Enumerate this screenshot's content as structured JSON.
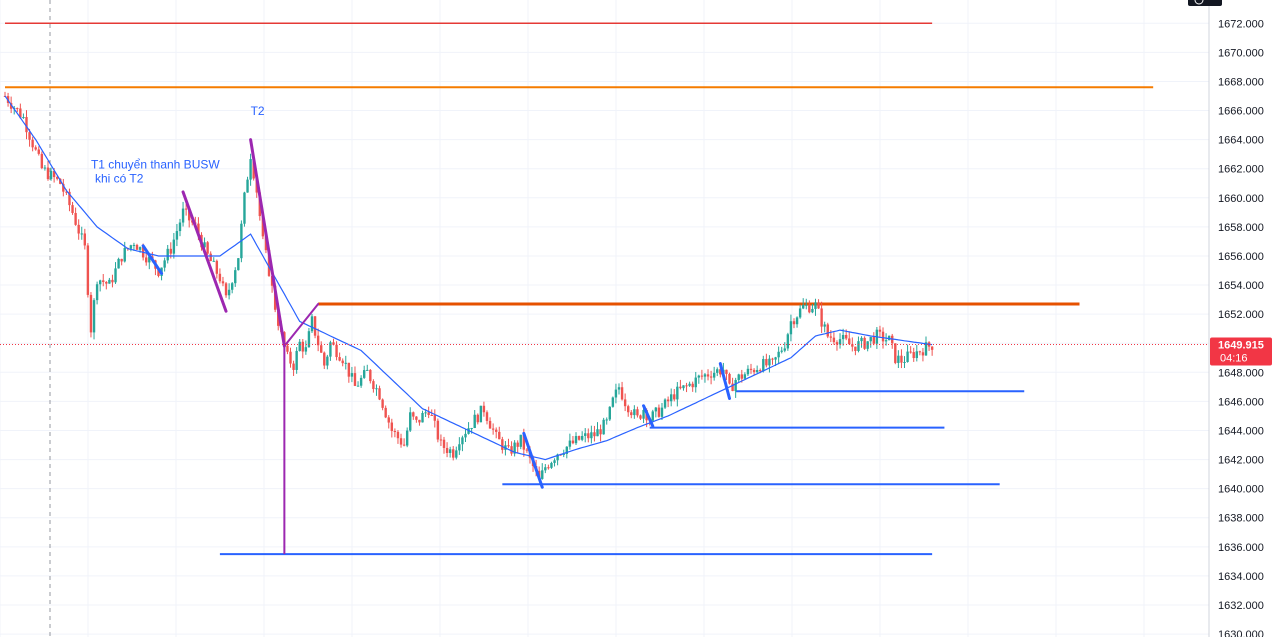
{
  "chart_data": {
    "type": "candlestick",
    "y_axis": {
      "ticks": [
        "1672.000",
        "1670.000",
        "1668.000",
        "1666.000",
        "1664.000",
        "1662.000",
        "1660.000",
        "1658.000",
        "1656.000",
        "1654.000",
        "1652.000",
        "1650.000",
        "1648.000",
        "1646.000",
        "1644.000",
        "1642.000",
        "1640.000",
        "1638.000",
        "1636.000",
        "1634.000",
        "1632.000",
        "1630.000"
      ],
      "tick_values": [
        1672,
        1670,
        1668,
        1666,
        1664,
        1662,
        1660,
        1658,
        1656,
        1654,
        1652,
        1650,
        1648,
        1646,
        1644,
        1642,
        1640,
        1638,
        1636,
        1634,
        1632,
        1630
      ],
      "ylim": [
        1629.8,
        1673.6
      ]
    },
    "current_price": {
      "label": "1649.915",
      "value": 1649.915,
      "countdown": "04:16",
      "color": "#f23645"
    },
    "colors": {
      "up": "#26a69a",
      "down": "#ef5350",
      "ma": "#2962ff",
      "grid": "#f0f3fa"
    },
    "annotations": [
      {
        "id": "t1",
        "lines": [
          "T1 chuyển thanh BUSW",
          "khi có T2"
        ],
        "x": 14,
        "y": 1662.0,
        "color": "#2962ff"
      },
      {
        "id": "t2",
        "lines": [
          "T2"
        ],
        "x": 40,
        "y": 1665.7,
        "color": "#2962ff"
      }
    ],
    "horizontal_levels": [
      {
        "y": 1672.0,
        "x_start": 0,
        "x_end": 151,
        "color": "#e53935",
        "width": 1.5
      },
      {
        "y": 1667.6,
        "x_start": 0,
        "x_end": 187,
        "color": "#f57c00",
        "width": 2
      },
      {
        "y": 1652.7,
        "x_start": 51,
        "x_end": 175,
        "color": "#e65100",
        "width": 3
      },
      {
        "y": 1646.7,
        "x_start": 119,
        "x_end": 166,
        "color": "#2962ff",
        "width": 2
      },
      {
        "y": 1644.2,
        "x_start": 105,
        "x_end": 153,
        "color": "#2962ff",
        "width": 2
      },
      {
        "y": 1640.3,
        "x_start": 81,
        "x_end": 162,
        "color": "#2962ff",
        "width": 2
      },
      {
        "y": 1635.5,
        "x_start": 35,
        "x_end": 151,
        "color": "#2962ff",
        "width": 2
      }
    ],
    "vertical_markers": [
      {
        "x": 45.5,
        "y1": 1649.8,
        "y2": 1635.5,
        "color": "#9c27b0",
        "width": 2
      }
    ],
    "trend_segments": [
      {
        "x1": 29,
        "y1": 1660.4,
        "x2": 36,
        "y2": 1652.2,
        "color": "#9c27b0",
        "width": 3
      },
      {
        "x1": 40,
        "y1": 1664.0,
        "x2": 45.5,
        "y2": 1649.8,
        "color": "#9c27b0",
        "width": 3
      },
      {
        "x1": 45.5,
        "y1": 1649.8,
        "x2": 51,
        "y2": 1652.7,
        "color": "#9c27b0",
        "width": 2
      },
      {
        "x1": 22.5,
        "y1": 1656.7,
        "x2": 25.5,
        "y2": 1654.8,
        "color": "#2962ff",
        "width": 3
      },
      {
        "x1": 84.5,
        "y1": 1643.8,
        "x2": 87.5,
        "y2": 1640.1,
        "color": "#2962ff",
        "width": 3
      },
      {
        "x1": 104,
        "y1": 1645.7,
        "x2": 105.5,
        "y2": 1644.3,
        "color": "#2962ff",
        "width": 3
      },
      {
        "x1": 116.5,
        "y1": 1648.6,
        "x2": 118,
        "y2": 1646.2,
        "color": "#2962ff",
        "width": 3
      }
    ],
    "ma_keys": [
      [
        0,
        1667.0
      ],
      [
        5,
        1664.0
      ],
      [
        10,
        1660.5
      ],
      [
        15,
        1658.0
      ],
      [
        20,
        1656.5
      ],
      [
        25,
        1656.0
      ],
      [
        30,
        1656.0
      ],
      [
        35,
        1656.0
      ],
      [
        40,
        1657.5
      ],
      [
        44,
        1654.5
      ],
      [
        48,
        1651.5
      ],
      [
        53,
        1650.5
      ],
      [
        58,
        1649.5
      ],
      [
        63,
        1647.5
      ],
      [
        68,
        1645.5
      ],
      [
        73,
        1644.5
      ],
      [
        78,
        1643.5
      ],
      [
        83,
        1642.5
      ],
      [
        88,
        1642.0
      ],
      [
        93,
        1642.7
      ],
      [
        98,
        1643.3
      ],
      [
        103,
        1644.2
      ],
      [
        108,
        1645.0
      ],
      [
        113,
        1646.0
      ],
      [
        118,
        1647.0
      ],
      [
        123,
        1648.0
      ],
      [
        128,
        1649.0
      ],
      [
        132,
        1650.5
      ],
      [
        136,
        1650.9
      ],
      [
        141,
        1650.5
      ],
      [
        146,
        1650.2
      ],
      [
        151,
        1649.9
      ]
    ],
    "price_keys": [
      [
        0,
        1667.0
      ],
      [
        3,
        1665.5
      ],
      [
        6,
        1662.0
      ],
      [
        9,
        1661.0
      ],
      [
        11,
        1659.0
      ],
      [
        13,
        1656.5
      ],
      [
        14,
        1651.0
      ],
      [
        15,
        1654.5
      ],
      [
        17,
        1654.0
      ],
      [
        19,
        1656.0
      ],
      [
        21,
        1657.0
      ],
      [
        23,
        1656.0
      ],
      [
        25,
        1655.0
      ],
      [
        27,
        1656.5
      ],
      [
        29,
        1659.0
      ],
      [
        31,
        1658.0
      ],
      [
        33,
        1656.0
      ],
      [
        35,
        1654.5
      ],
      [
        36,
        1653.0
      ],
      [
        37,
        1654.5
      ],
      [
        38,
        1656.0
      ],
      [
        39,
        1660.0
      ],
      [
        40,
        1663.0
      ],
      [
        41,
        1660.5
      ],
      [
        42,
        1657.0
      ],
      [
        43,
        1655.0
      ],
      [
        44,
        1652.5
      ],
      [
        45,
        1650.5
      ],
      [
        46,
        1649.0
      ],
      [
        47,
        1648.5
      ],
      [
        48,
        1650.0
      ],
      [
        49,
        1649.5
      ],
      [
        50,
        1651.5
      ],
      [
        51,
        1650.0
      ],
      [
        52,
        1648.5
      ],
      [
        53,
        1650.0
      ],
      [
        55,
        1649.0
      ],
      [
        57,
        1647.0
      ],
      [
        59,
        1648.0
      ],
      [
        61,
        1646.5
      ],
      [
        63,
        1644.0
      ],
      [
        65,
        1643.0
      ],
      [
        66,
        1645.0
      ],
      [
        67,
        1644.5
      ],
      [
        69,
        1645.5
      ],
      [
        71,
        1643.0
      ],
      [
        73,
        1642.5
      ],
      [
        74,
        1643.5
      ],
      [
        76,
        1644.5
      ],
      [
        78,
        1645.5
      ],
      [
        80,
        1643.5
      ],
      [
        82,
        1642.5
      ],
      [
        84,
        1643.3
      ],
      [
        86,
        1641.5
      ],
      [
        87,
        1640.5
      ],
      [
        88,
        1641.5
      ],
      [
        90,
        1642.5
      ],
      [
        92,
        1643.0
      ],
      [
        94,
        1643.5
      ],
      [
        96,
        1643.7
      ],
      [
        98,
        1644.5
      ],
      [
        99,
        1646.0
      ],
      [
        100,
        1647.0
      ],
      [
        101,
        1646.0
      ],
      [
        103,
        1644.8
      ],
      [
        104,
        1645.5
      ],
      [
        105,
        1644.8
      ],
      [
        107,
        1645.5
      ],
      [
        109,
        1646.5
      ],
      [
        111,
        1647.0
      ],
      [
        113,
        1647.6
      ],
      [
        115,
        1648.0
      ],
      [
        117,
        1648.2
      ],
      [
        118,
        1646.8
      ],
      [
        119,
        1647.5
      ],
      [
        121,
        1648.0
      ],
      [
        123,
        1648.5
      ],
      [
        125,
        1648.5
      ],
      [
        127,
        1650.0
      ],
      [
        128,
        1651.5
      ],
      [
        130,
        1652.5
      ],
      [
        132,
        1652.6
      ],
      [
        133,
        1651.5
      ],
      [
        134,
        1650.5
      ],
      [
        136,
        1650.3
      ],
      [
        138,
        1649.8
      ],
      [
        140,
        1650.0
      ],
      [
        142,
        1650.5
      ],
      [
        144,
        1650.2
      ],
      [
        145,
        1649.0
      ],
      [
        146,
        1648.8
      ],
      [
        148,
        1649.3
      ],
      [
        150,
        1649.7
      ],
      [
        151,
        1649.9
      ]
    ]
  }
}
